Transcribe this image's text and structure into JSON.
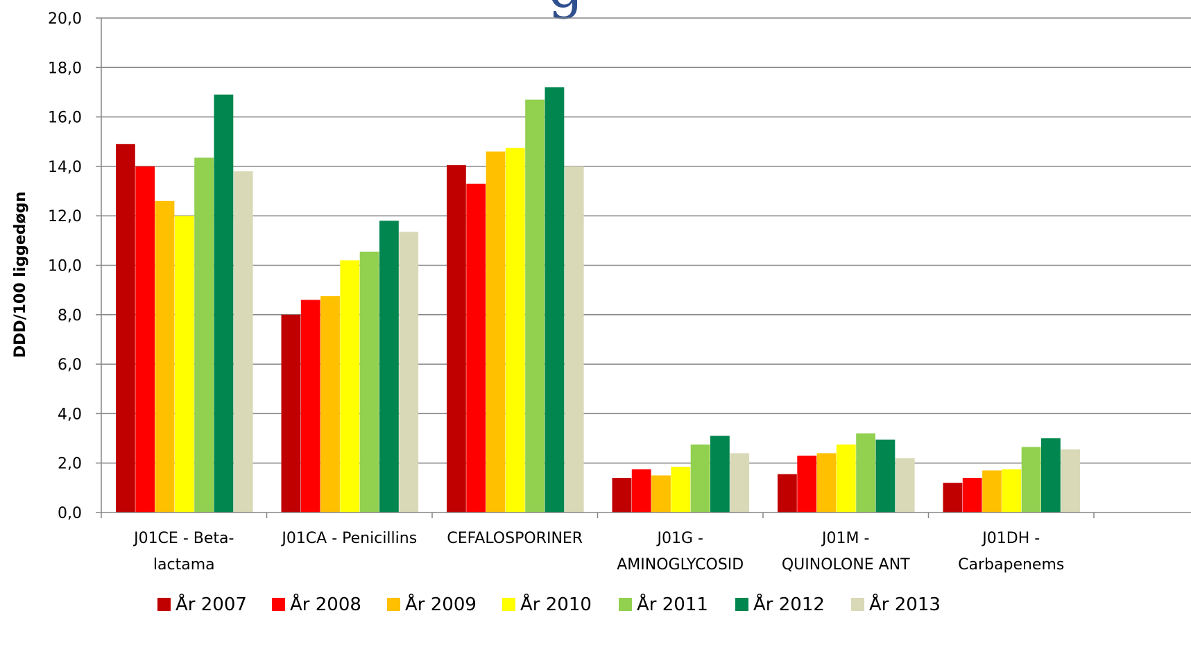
{
  "chart_data": {
    "type": "bar",
    "title": "g",
    "ylabel": "DDD/100 liggedøgn",
    "xlabel": "",
    "ylim": [
      0,
      20
    ],
    "yticks": [
      "0,0",
      "2,0",
      "4,0",
      "6,0",
      "8,0",
      "10,0",
      "12,0",
      "14,0",
      "16,0",
      "18,0",
      "20,0"
    ],
    "grid": true,
    "legend_position": "bottom",
    "categories": [
      [
        "J01CE - Beta-",
        "lactama"
      ],
      [
        "J01CA - Penicillins"
      ],
      [
        "CEFALOSPORINER"
      ],
      [
        "J01G -",
        "AMINOGLYCOSID"
      ],
      [
        "J01M -",
        "QUINOLONE ANT"
      ],
      [
        "J01DH -",
        "Carbapenems"
      ]
    ],
    "series": [
      {
        "name": "År 2007",
        "color": "#c00000",
        "values": [
          14.9,
          8.0,
          14.05,
          1.4,
          1.55,
          1.2
        ]
      },
      {
        "name": "År 2008",
        "color": "#ff0000",
        "values": [
          14.0,
          8.6,
          13.3,
          1.75,
          2.3,
          1.4
        ]
      },
      {
        "name": "År 2009",
        "color": "#ffc000",
        "values": [
          12.6,
          8.75,
          14.6,
          1.5,
          2.4,
          1.7
        ]
      },
      {
        "name": "År 2010",
        "color": "#ffff00",
        "values": [
          12.0,
          10.2,
          14.75,
          1.85,
          2.75,
          1.75
        ]
      },
      {
        "name": "År 2011",
        "color": "#92d050",
        "values": [
          14.35,
          10.55,
          16.7,
          2.75,
          3.2,
          2.65
        ]
      },
      {
        "name": "År 2012",
        "color": "#00864e",
        "values": [
          16.9,
          11.8,
          17.2,
          3.1,
          2.95,
          3.0
        ]
      },
      {
        "name": "År 2013",
        "color": "#d9d9b8",
        "values": [
          13.8,
          11.35,
          14.0,
          2.4,
          2.2,
          2.55
        ]
      }
    ]
  }
}
